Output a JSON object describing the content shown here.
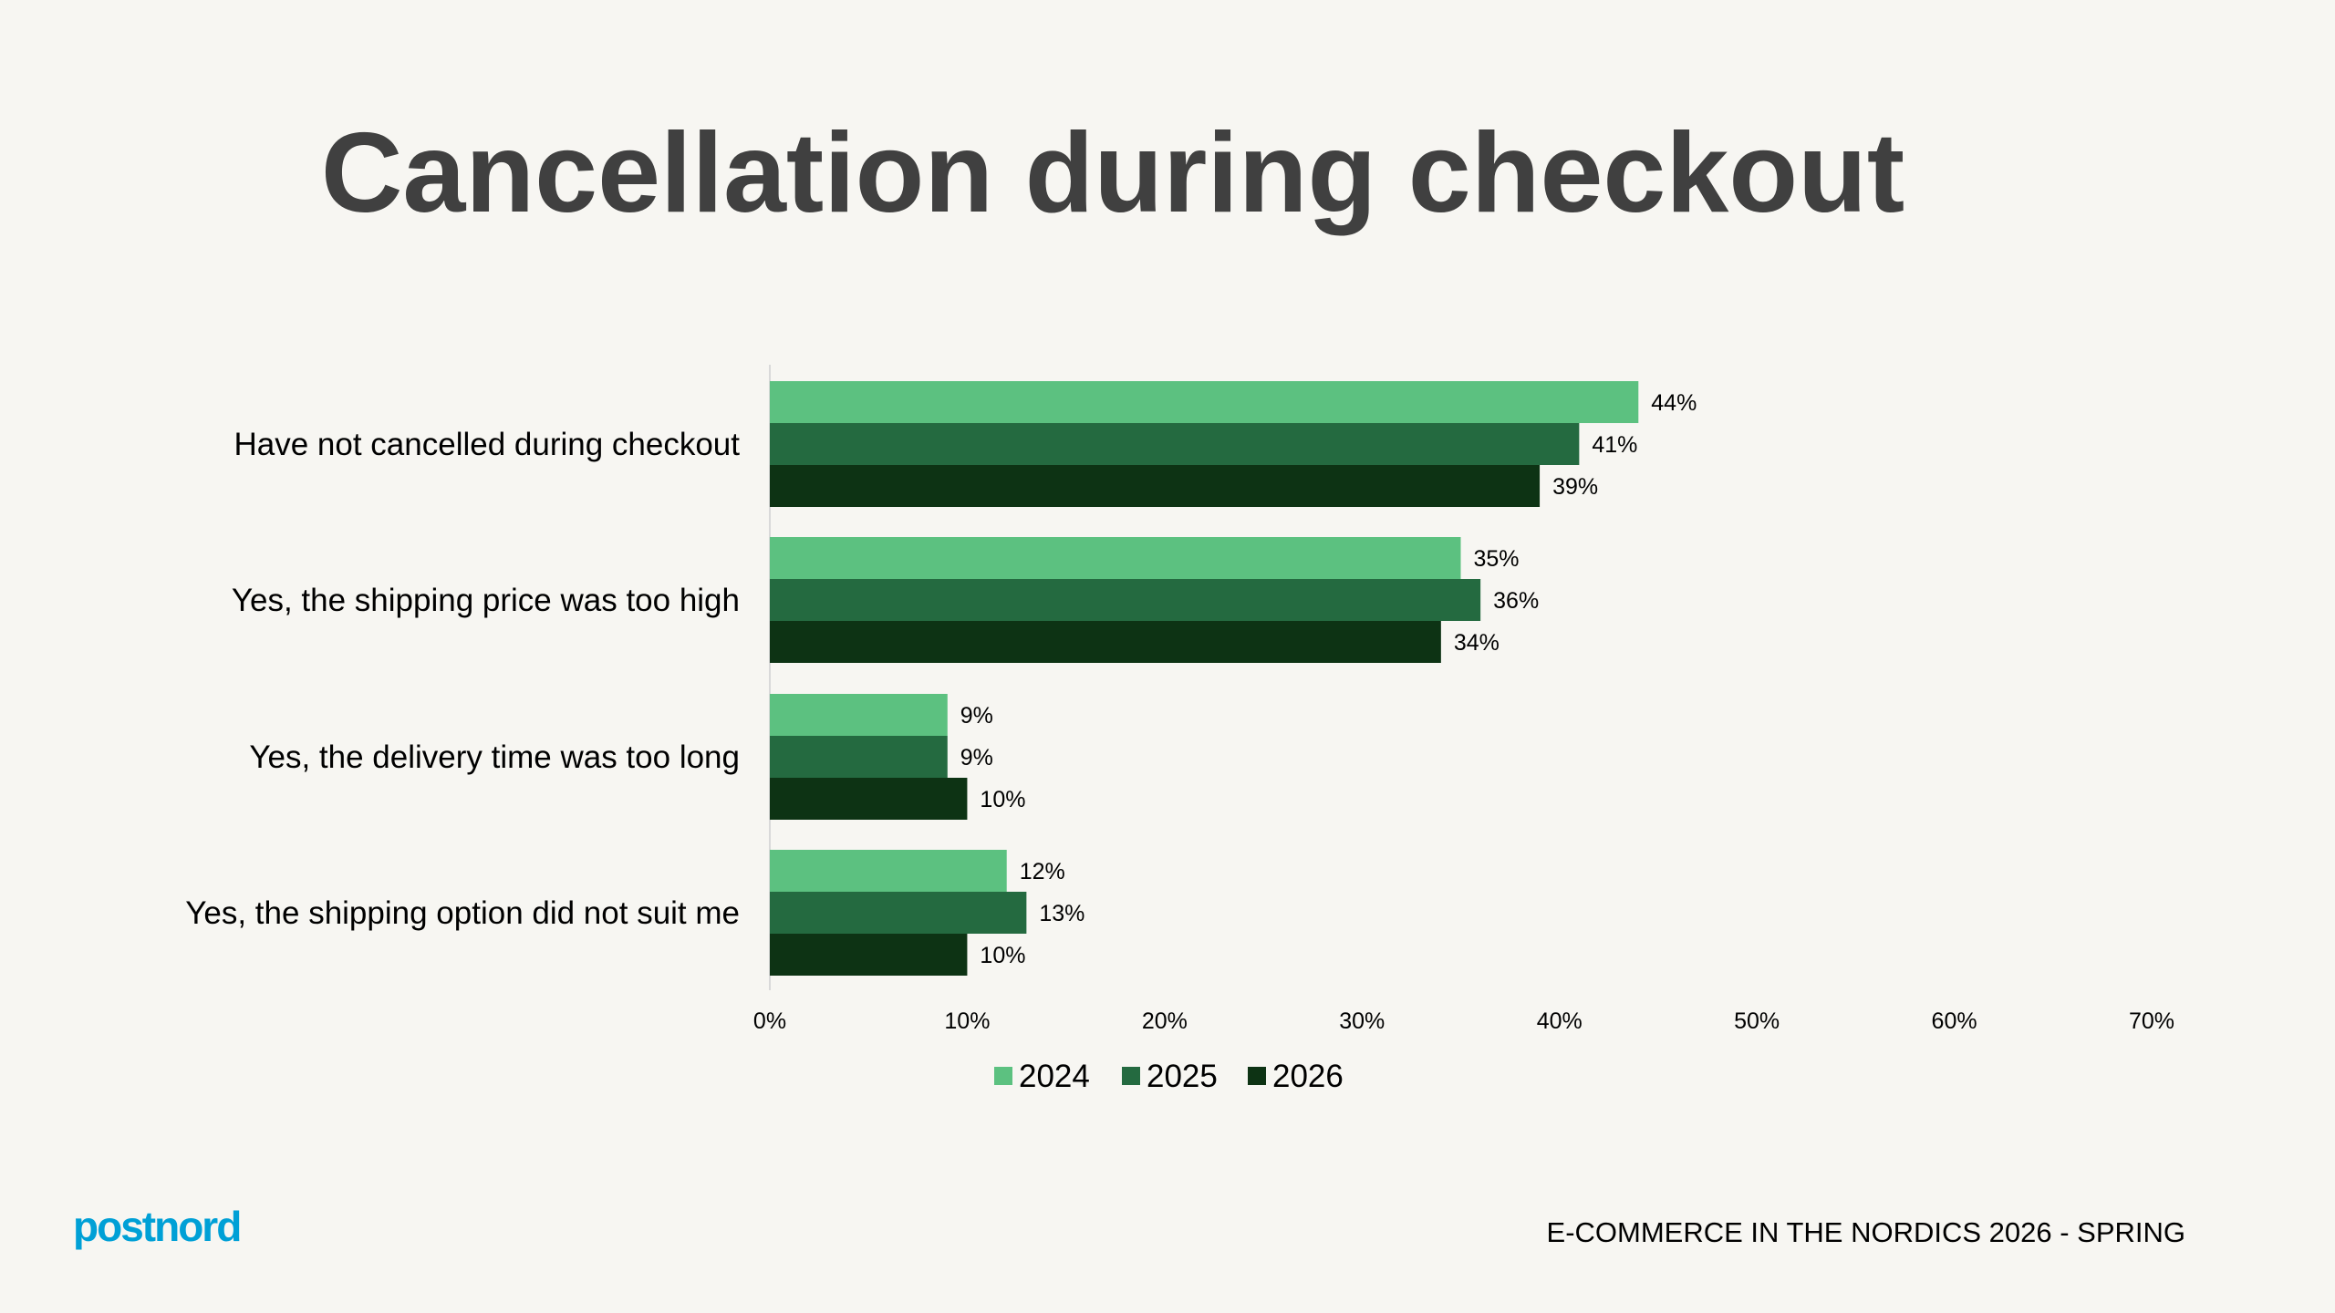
{
  "title": "Cancellation during checkout",
  "chart_data": {
    "type": "bar",
    "orientation": "horizontal",
    "categories": [
      "Have not cancelled during checkout",
      "Yes, the shipping price was too high",
      "Yes, the delivery time was too long",
      "Yes, the shipping option did not suit me"
    ],
    "series": [
      {
        "name": "2024",
        "color": "#5CC180",
        "values": [
          44,
          35,
          9,
          12
        ],
        "labels": [
          "44%",
          "35%",
          "9%",
          "12%"
        ]
      },
      {
        "name": "2025",
        "color": "#246A40",
        "values": [
          41,
          36,
          9,
          13
        ],
        "labels": [
          "41%",
          "36%",
          "9%",
          "13%"
        ]
      },
      {
        "name": "2026",
        "color": "#0D3314",
        "values": [
          39,
          34,
          10,
          10
        ],
        "labels": [
          "39%",
          "34%",
          "10%",
          "10%"
        ]
      }
    ],
    "xlim": [
      0,
      70
    ],
    "xticks": [
      "0%",
      "10%",
      "20%",
      "30%",
      "40%",
      "50%",
      "60%",
      "70%"
    ],
    "grid": false,
    "legend": "bottom"
  },
  "footer": {
    "logo": "postnord",
    "logo_color": "#00A0D6",
    "text": "E-COMMERCE IN THE NORDICS 2026 - SPRING"
  }
}
